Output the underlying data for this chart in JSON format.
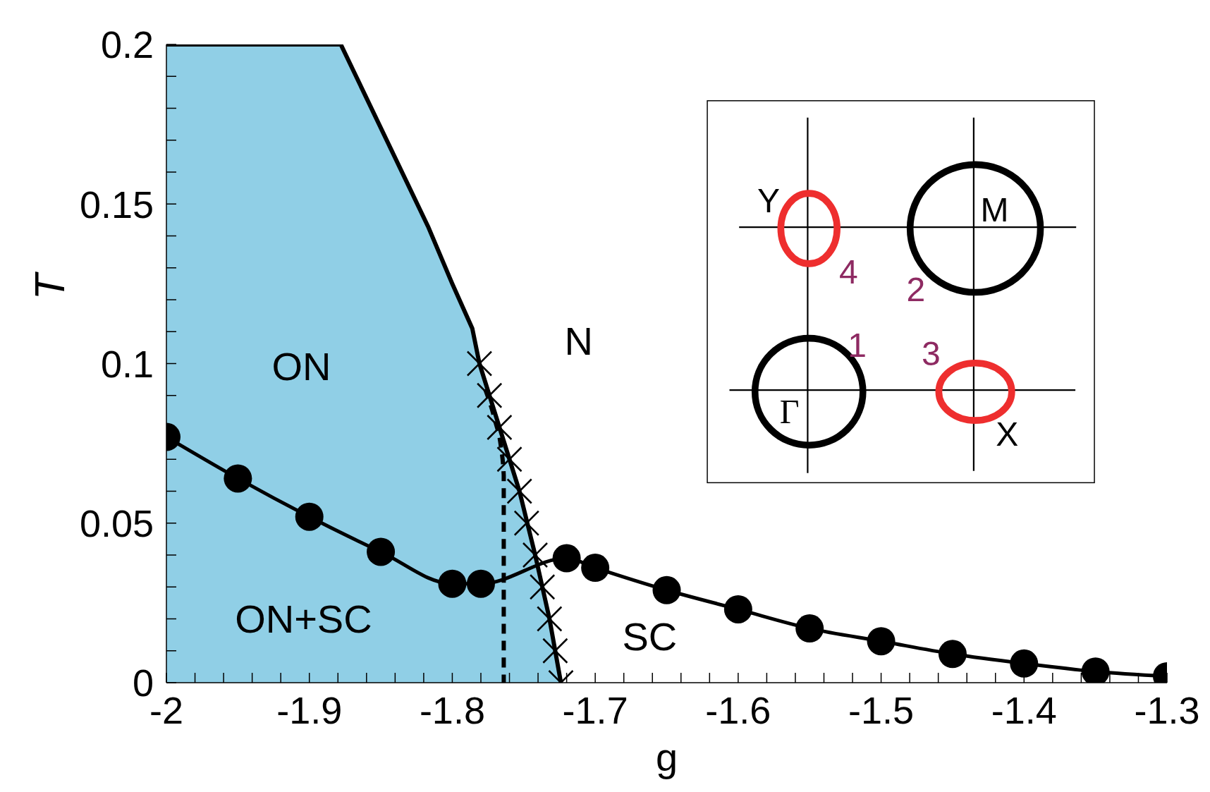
{
  "chart_data": {
    "type": "line",
    "xlabel": "g",
    "ylabel": "T",
    "xlim": [
      -2,
      -1.3
    ],
    "ylim": [
      0,
      0.2
    ],
    "xticks": [
      -2,
      {
        "value": -1.98,
        "label": null
      },
      {
        "value": -1.96,
        "label": null
      },
      {
        "value": -1.94,
        "label": null
      },
      {
        "value": -1.92,
        "label": null
      },
      -1.9,
      {
        "value": -1.88,
        "label": null
      },
      {
        "value": -1.86,
        "label": null
      },
      {
        "value": -1.84,
        "label": null
      },
      {
        "value": -1.82,
        "label": null
      },
      -1.8,
      {
        "value": -1.78,
        "label": null
      },
      {
        "value": -1.76,
        "label": null
      },
      {
        "value": -1.74,
        "label": null
      },
      {
        "value": -1.72,
        "label": null
      },
      -1.7,
      {
        "value": -1.68,
        "label": null
      },
      {
        "value": -1.66,
        "label": null
      },
      {
        "value": -1.64,
        "label": null
      },
      {
        "value": -1.62,
        "label": null
      },
      -1.6,
      {
        "value": -1.58,
        "label": null
      },
      {
        "value": -1.56,
        "label": null
      },
      {
        "value": -1.54,
        "label": null
      },
      {
        "value": -1.52,
        "label": null
      },
      -1.5,
      {
        "value": -1.48,
        "label": null
      },
      {
        "value": -1.46,
        "label": null
      },
      {
        "value": -1.44,
        "label": null
      },
      {
        "value": -1.42,
        "label": null
      },
      -1.4,
      {
        "value": -1.38,
        "label": null
      },
      {
        "value": -1.36,
        "label": null
      },
      {
        "value": -1.34,
        "label": null
      },
      {
        "value": -1.32,
        "label": null
      },
      -1.3
    ],
    "yticks": [
      0,
      {
        "value": 0.01,
        "label": null
      },
      {
        "value": 0.02,
        "label": null
      },
      {
        "value": 0.03,
        "label": null
      },
      {
        "value": 0.04,
        "label": null
      },
      0.05,
      {
        "value": 0.06,
        "label": null
      },
      {
        "value": 0.07,
        "label": null
      },
      {
        "value": 0.08,
        "label": null
      },
      {
        "value": 0.09,
        "label": null
      },
      0.1,
      {
        "value": 0.11,
        "label": null
      },
      {
        "value": 0.12,
        "label": null
      },
      {
        "value": 0.13,
        "label": null
      },
      {
        "value": 0.14,
        "label": null
      },
      0.15,
      {
        "value": 0.16,
        "label": null
      },
      {
        "value": 0.17,
        "label": null
      },
      {
        "value": 0.18,
        "label": null
      },
      {
        "value": 0.19,
        "label": null
      },
      0.2
    ],
    "annotations": [
      "ON",
      "N",
      "ON+SC",
      "SC",
      "Y",
      "M",
      "Γ",
      "X",
      "1",
      "2",
      "3",
      "4"
    ],
    "series": [
      {
        "type": "area",
        "color": "#90cfe6",
        "line_style": "solid",
        "x": [
          -2,
          -1.878,
          -1.817,
          -1.8,
          -1.786,
          -1.781,
          -1.767,
          -1.753,
          -1.742,
          -1.732,
          -1.724
        ],
        "values": [
          0.2,
          0.2,
          0.143,
          0.125,
          0.111,
          0.1,
          0.08,
          0.06,
          0.04,
          0.02,
          0
        ]
      },
      {
        "color": "#000000",
        "marker": "none",
        "line_style": "dashed",
        "x": [
          -1.777,
          -1.77,
          -1.766,
          -1.764,
          -1.764
        ],
        "values": [
          0.092,
          0.082,
          0.074,
          0.065,
          0
        ]
      },
      {
        "type": "scatter",
        "color": "#000000",
        "marker": "cross",
        "x": [
          -1.781,
          -1.774,
          -1.767,
          -1.76,
          -1.753,
          -1.748,
          -1.742,
          -1.737,
          -1.732,
          -1.728,
          -1.724
        ],
        "values": [
          0.1,
          0.09,
          0.08,
          0.07,
          0.06,
          0.05,
          0.04,
          0.03,
          0.02,
          0.01,
          0
        ]
      },
      {
        "color": "#000000",
        "marker": "circle",
        "line_style": "solid",
        "x": [
          -2,
          -1.95,
          -1.9,
          -1.85,
          -1.8,
          -1.78,
          -1.72,
          -1.7,
          -1.65,
          -1.6,
          -1.55,
          -1.5,
          -1.45,
          -1.4,
          -1.35,
          -1.3
        ],
        "values": [
          0.077,
          0.064,
          0.052,
          0.041,
          0.031,
          0.031,
          0.039,
          0.036,
          0.029,
          0.023,
          0.017,
          0.013,
          0.009,
          0.006,
          0.0035,
          0.002
        ]
      }
    ]
  }
}
